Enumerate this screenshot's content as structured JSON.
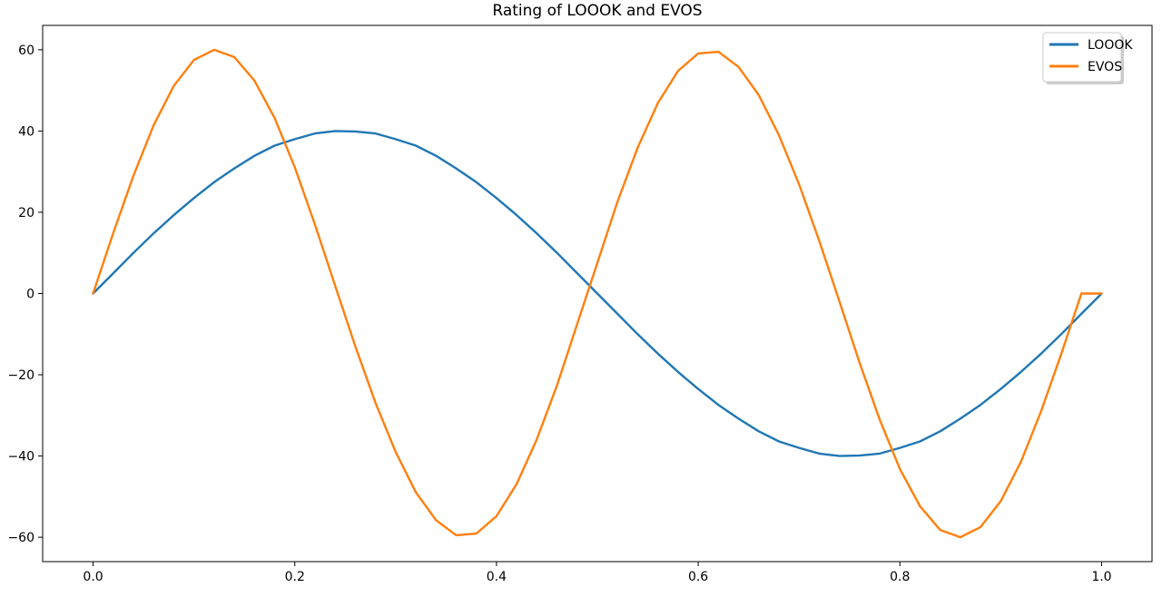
{
  "chart_data": {
    "type": "line",
    "title": "Rating of LOOOK and EVOS",
    "xlabel": "",
    "ylabel": "",
    "xlim": [
      -0.05,
      1.05
    ],
    "ylim": [
      -66,
      66
    ],
    "x_ticks": [
      0.0,
      0.2,
      0.4,
      0.6,
      0.8,
      1.0
    ],
    "x_tick_labels": [
      "0.0",
      "0.2",
      "0.4",
      "0.6",
      "0.8",
      "1.0"
    ],
    "y_ticks": [
      -60,
      -40,
      -20,
      0,
      20,
      40,
      60
    ],
    "y_tick_labels": [
      "−60",
      "−40",
      "−20",
      "0",
      "20",
      "40",
      "60"
    ],
    "grid": false,
    "legend_position": "top-right",
    "x": [
      0,
      0.02,
      0.04,
      0.06,
      0.08,
      0.1,
      0.12,
      0.14,
      0.16,
      0.18,
      0.2,
      0.22,
      0.24,
      0.26,
      0.28,
      0.3,
      0.32,
      0.34,
      0.36,
      0.38,
      0.4,
      0.42,
      0.44,
      0.46,
      0.48,
      0.5,
      0.52,
      0.54,
      0.56,
      0.58,
      0.6,
      0.62,
      0.64,
      0.66,
      0.68,
      0.7,
      0.72,
      0.74,
      0.76,
      0.78,
      0.8,
      0.82,
      0.84,
      0.86,
      0.88,
      0.9,
      0.92,
      0.94,
      0.96,
      0.98,
      1.0
    ],
    "series": [
      {
        "name": "LOOOK",
        "color": "#1f77b4",
        "values": [
          0,
          5.0,
          10.0,
          14.8,
          19.3,
          23.5,
          27.4,
          30.8,
          33.9,
          36.4,
          38.0,
          39.4,
          40.0,
          39.9,
          39.4,
          38.0,
          36.4,
          33.9,
          30.8,
          27.4,
          23.5,
          19.3,
          14.8,
          10.0,
          5.0,
          0,
          -5.0,
          -10.0,
          -14.8,
          -19.3,
          -23.5,
          -27.4,
          -30.8,
          -33.9,
          -36.4,
          -38.0,
          -39.4,
          -40.0,
          -39.9,
          -39.4,
          -38.0,
          -36.4,
          -33.9,
          -30.8,
          -27.4,
          -23.5,
          -19.3,
          -14.8,
          -10.0,
          -5.0,
          0
        ]
      },
      {
        "name": "EVOS",
        "color": "#ff7f0e",
        "values": [
          0,
          14.9,
          29.0,
          41.4,
          51.1,
          57.5,
          60.0,
          58.2,
          52.4,
          43.2,
          31.1,
          17.0,
          1.9,
          -13.0,
          -26.9,
          -39.0,
          -48.9,
          -55.8,
          -59.5,
          -59.1,
          -54.8,
          -46.9,
          -35.9,
          -22.6,
          -7.5,
          7.5,
          22.6,
          35.9,
          46.9,
          54.8,
          59.1,
          59.5,
          55.8,
          48.9,
          39.0,
          26.9,
          13.0,
          -1.9,
          -17.0,
          -31.1,
          -43.2,
          -52.4,
          -58.2,
          -60.0,
          -57.5,
          -51.1,
          -41.4,
          -29.0,
          -14.9,
          0,
          0
        ]
      }
    ]
  }
}
